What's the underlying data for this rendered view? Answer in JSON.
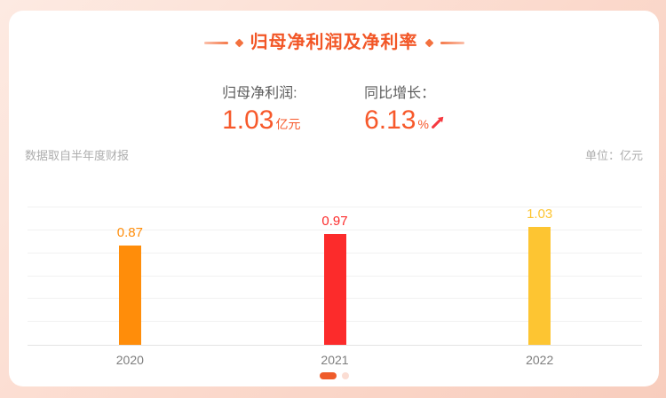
{
  "header": {
    "title": "归母净利润及净利率"
  },
  "stats": [
    {
      "label": "归母净利润:",
      "value": "1.03",
      "unit": "亿元"
    },
    {
      "label": "同比增长：",
      "value": "6.13",
      "unit": "%",
      "trend": "up"
    }
  ],
  "meta": {
    "source_note": "数据取自半年度财报",
    "unit_label": "单位：亿元"
  },
  "chart_data": {
    "type": "bar",
    "title": "归母净利润及净利率",
    "categories": [
      "2020",
      "2021",
      "2022"
    ],
    "values": [
      0.87,
      0.97,
      1.03
    ],
    "value_labels": [
      "0.87",
      "0.97",
      "1.03"
    ],
    "bar_colors": [
      "#ff8d0a",
      "#fc2b2b",
      "#fdc532"
    ],
    "xlabel": "",
    "ylabel": "亿元",
    "ylim": [
      0,
      1.2
    ],
    "gridline_step": 0.2,
    "grid": true,
    "legend": false
  },
  "pagination": {
    "total": 2,
    "active_index": 0
  },
  "colors": {
    "accent": "#f25626",
    "stat_value": "#f7592b",
    "trend_arrow": "#f6383e",
    "active_dot": "#ef5b2a",
    "inactive_dot": "#fbddd3"
  }
}
